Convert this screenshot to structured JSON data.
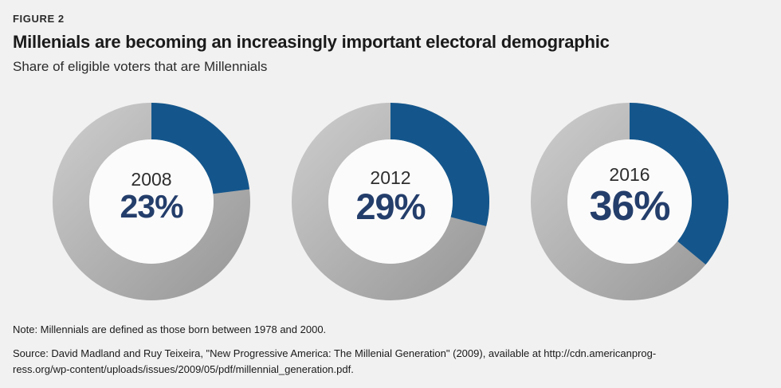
{
  "figure_label": "FIGURE 2",
  "title": "Millenials are becoming an increasingly important electoral demographic",
  "subtitle": "Share of eligible voters that are Millennials",
  "note": "Note: Millennials are defined as those born between 1978 and 2000.",
  "source_line1": "Source: David Madland and Ruy Teixeira, \"New Progressive America: The Millenial Generation\" (2009), available at http://cdn.americanprog-",
  "source_line2": "ress.org/wp-content/uploads/issues/2009/05/pdf/millennial_generation.pdf.",
  "colors": {
    "background": "#f1f1f1",
    "accent_blue": "#14568c",
    "percent_navy": "#243e6b",
    "gray_ring_light": "#c9c9c9",
    "gray_ring_dark": "#9b9b9b",
    "donut_hole": "#fbfbfb",
    "text_dark": "#1a1a1a"
  },
  "chart_data": {
    "type": "pie",
    "variant": "donut",
    "title": "Millenials are becoming an increasingly important electoral demographic",
    "subtitle": "Share of eligible voters that are Millennials",
    "unit": "%",
    "categories": [
      "2008",
      "2012",
      "2016"
    ],
    "values": [
      23,
      29,
      36
    ],
    "legend": "none",
    "value_segment_color": "#14568c",
    "remainder_segment_color": "gray gradient #c9c9c9 to #9b9b9b",
    "start_angle_deg": 0,
    "direction": "clockwise",
    "donuts": [
      {
        "year": "2008",
        "value": 23,
        "display": "23%"
      },
      {
        "year": "2012",
        "value": 29,
        "display": "29%"
      },
      {
        "year": "2016",
        "value": 36,
        "display": "36%"
      }
    ]
  }
}
